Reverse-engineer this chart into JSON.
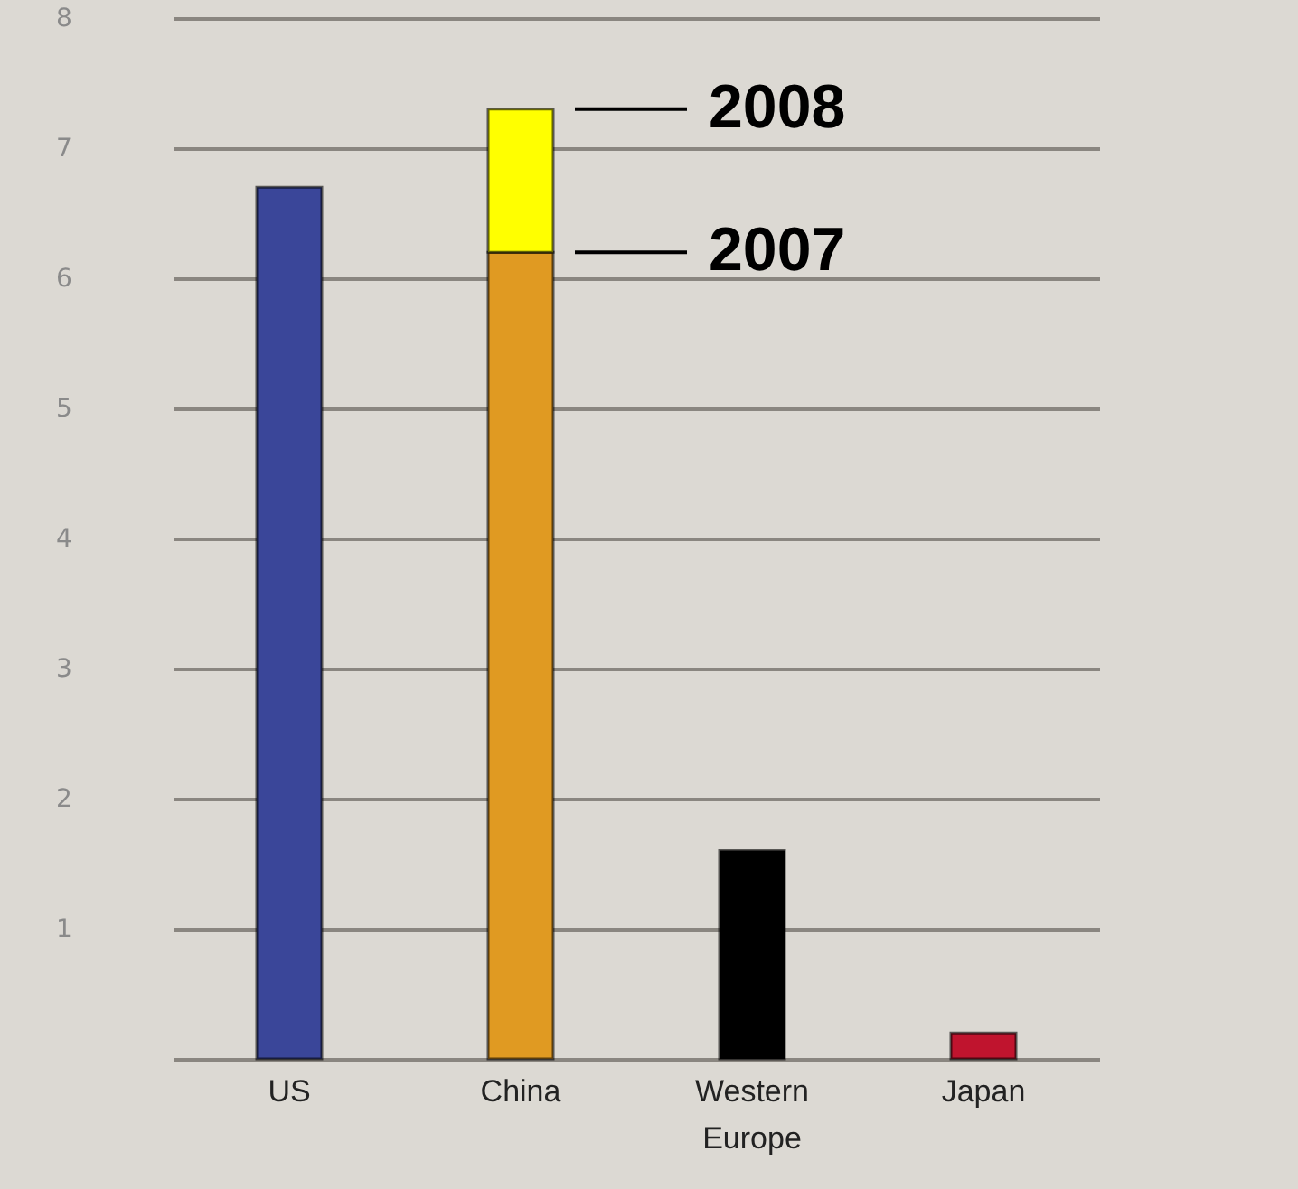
{
  "chart_data": {
    "type": "bar",
    "stacked": true,
    "categories": [
      "US",
      "China",
      "Western Europe",
      "Japan"
    ],
    "series": [
      {
        "name": "2007",
        "colors": [
          "#3a4699",
          "#e09a22",
          "#000000",
          "#c0142e"
        ],
        "values": [
          6.7,
          6.2,
          1.6,
          0.2
        ]
      },
      {
        "name": "2008",
        "color": "#ffff00",
        "values": [
          null,
          1.1,
          null,
          null
        ]
      }
    ],
    "ylim": [
      0,
      8
    ],
    "yticks": [
      {
        "value": 0,
        "label": null
      },
      1,
      2,
      3,
      4,
      5,
      6,
      7,
      8
    ],
    "grid": "y",
    "legend": "top"
  }
}
